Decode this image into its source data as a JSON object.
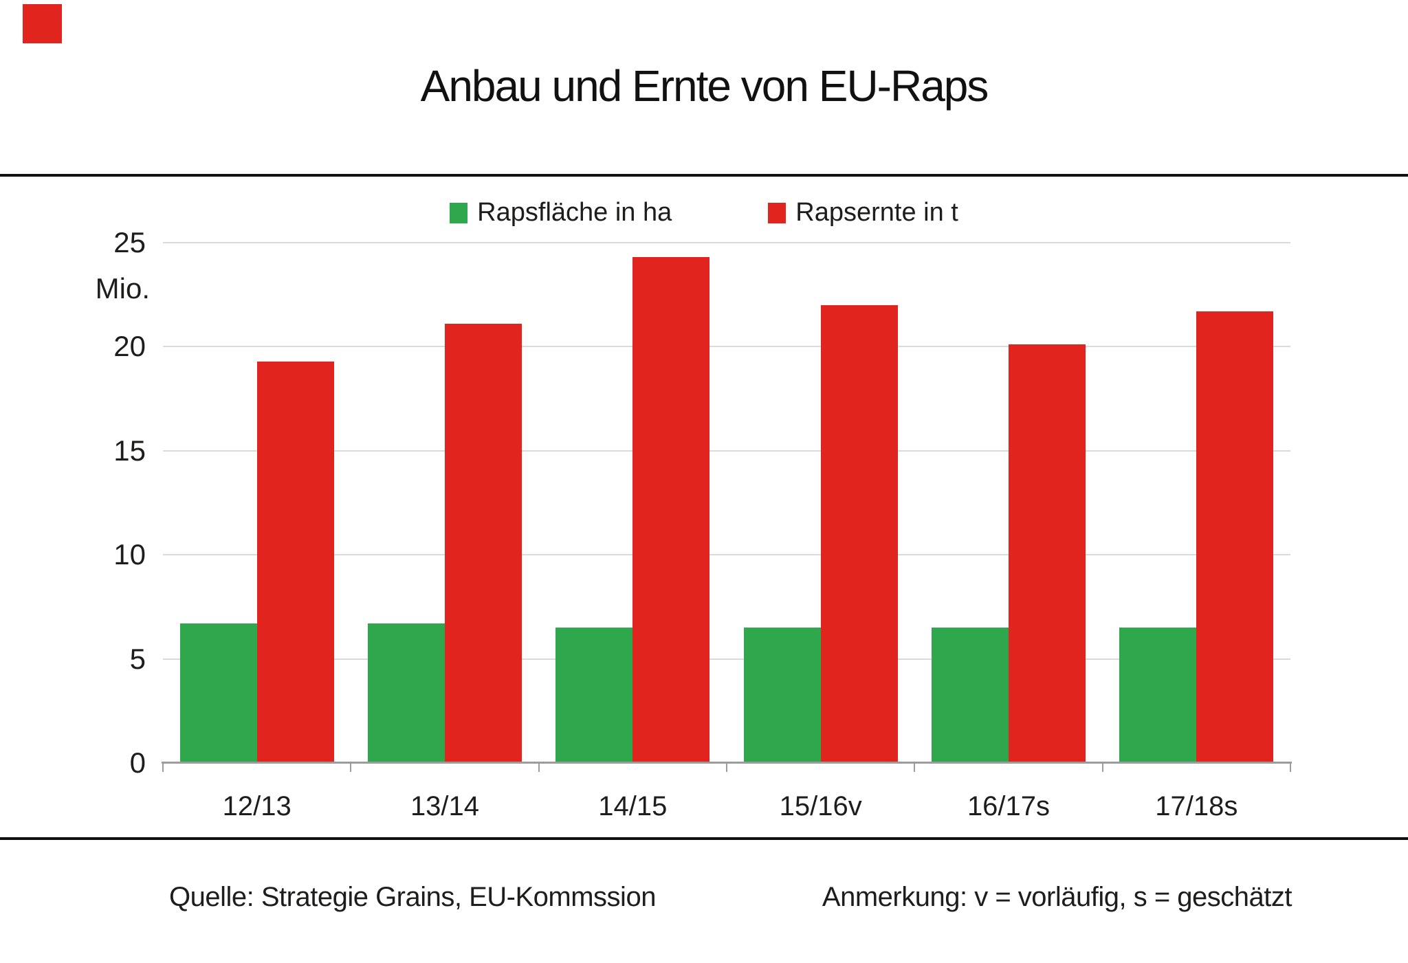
{
  "brand": {
    "logo_color": "#e2241f"
  },
  "chart_data": {
    "type": "bar",
    "title": "Anbau und Ernte von EU-Raps",
    "categories": [
      "12/13",
      "13/14",
      "14/15",
      "15/16v",
      "16/17s",
      "17/18s"
    ],
    "series": [
      {
        "name": "Rapsfläche in ha",
        "color": "#2fa74d",
        "values": [
          6.7,
          6.7,
          6.5,
          6.5,
          6.5,
          6.5
        ]
      },
      {
        "name": "Rapsernte in t",
        "color": "#e2241f",
        "values": [
          19.3,
          21.1,
          24.3,
          22.0,
          20.1,
          21.7
        ]
      }
    ],
    "ylabel": "Mio.",
    "yticks": [
      0,
      5,
      10,
      15,
      20,
      25
    ],
    "ylim": [
      0,
      25
    ],
    "grid": true,
    "legend_position": "top center"
  },
  "footer": {
    "source": "Quelle: Strategie Grains, EU-Kommssion",
    "note": "Anmerkung: v = vorläufig, s = geschätzt"
  }
}
